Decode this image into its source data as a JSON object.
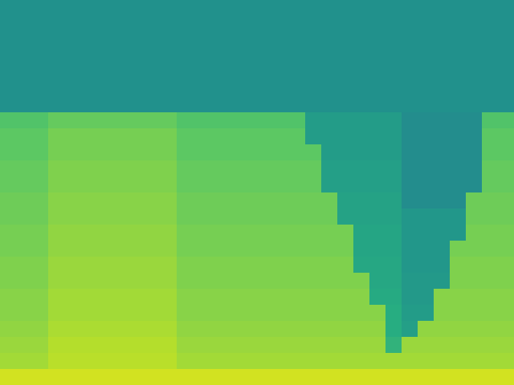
{
  "chart_data": {
    "type": "heatmap",
    "tick_labels": false,
    "value_range": [
      0,
      100
    ],
    "cells": [
      [
        50,
        50,
        50,
        50,
        50,
        50,
        50,
        50,
        50,
        50,
        50,
        50,
        50,
        50,
        50,
        50,
        50,
        50,
        50,
        50,
        50,
        50,
        50,
        50,
        50,
        50,
        50,
        50,
        50,
        50,
        50,
        50
      ],
      [
        50,
        50,
        50,
        50,
        50,
        50,
        50,
        50,
        50,
        50,
        50,
        50,
        50,
        50,
        50,
        50,
        50,
        50,
        50,
        50,
        50,
        50,
        50,
        50,
        50,
        50,
        50,
        50,
        50,
        50,
        50,
        50
      ],
      [
        50,
        50,
        50,
        50,
        50,
        50,
        50,
        50,
        50,
        50,
        50,
        50,
        50,
        50,
        50,
        50,
        50,
        50,
        50,
        50,
        50,
        50,
        50,
        50,
        50,
        50,
        50,
        50,
        50,
        50,
        50,
        50
      ],
      [
        50,
        50,
        50,
        50,
        50,
        50,
        50,
        50,
        50,
        50,
        50,
        50,
        50,
        50,
        50,
        50,
        50,
        50,
        50,
        50,
        50,
        50,
        50,
        50,
        50,
        50,
        50,
        50,
        50,
        50,
        50,
        50
      ],
      [
        50,
        50,
        50,
        50,
        50,
        50,
        50,
        50,
        50,
        50,
        50,
        50,
        50,
        50,
        50,
        50,
        50,
        50,
        50,
        50,
        50,
        50,
        50,
        50,
        50,
        50,
        50,
        50,
        50,
        50,
        50,
        50
      ],
      [
        50,
        50,
        50,
        50,
        50,
        50,
        50,
        50,
        50,
        50,
        50,
        50,
        50,
        50,
        50,
        50,
        50,
        50,
        50,
        50,
        50,
        50,
        50,
        50,
        50,
        50,
        50,
        50,
        50,
        50,
        50,
        50
      ],
      [
        50,
        50,
        50,
        50,
        50,
        50,
        50,
        50,
        50,
        50,
        50,
        50,
        50,
        50,
        50,
        50,
        50,
        50,
        50,
        50,
        50,
        50,
        50,
        50,
        50,
        50,
        50,
        50,
        50,
        50,
        50,
        50
      ],
      [
        68,
        68,
        68,
        71,
        71,
        71,
        71,
        71,
        71,
        71,
        71,
        68,
        68,
        68,
        68,
        68,
        68,
        68,
        68,
        54,
        54,
        54,
        54,
        54,
        54,
        47,
        47,
        47,
        47,
        47,
        68,
        68
      ],
      [
        70,
        70,
        70,
        73,
        73,
        73,
        73,
        73,
        73,
        73,
        73,
        70,
        70,
        70,
        70,
        70,
        70,
        70,
        70,
        54,
        54,
        54,
        54,
        54,
        54,
        47,
        47,
        47,
        47,
        47,
        70,
        70
      ],
      [
        70,
        70,
        70,
        73,
        73,
        73,
        73,
        73,
        73,
        73,
        73,
        70,
        70,
        70,
        70,
        70,
        70,
        70,
        70,
        70,
        54,
        54,
        54,
        54,
        54,
        47,
        47,
        47,
        47,
        47,
        70,
        70
      ],
      [
        71,
        71,
        71,
        74,
        74,
        74,
        74,
        74,
        74,
        74,
        74,
        71,
        71,
        71,
        71,
        71,
        71,
        71,
        71,
        71,
        55,
        55,
        55,
        55,
        55,
        47,
        47,
        47,
        47,
        47,
        71,
        71
      ],
      [
        71,
        71,
        71,
        74,
        74,
        74,
        74,
        74,
        74,
        74,
        74,
        71,
        71,
        71,
        71,
        71,
        71,
        71,
        71,
        71,
        55,
        55,
        55,
        55,
        55,
        47,
        47,
        47,
        47,
        47,
        71,
        71
      ],
      [
        72,
        72,
        72,
        75,
        75,
        75,
        75,
        75,
        75,
        75,
        75,
        72,
        72,
        72,
        72,
        72,
        72,
        72,
        72,
        72,
        72,
        56,
        56,
        56,
        56,
        47,
        47,
        47,
        47,
        72,
        72,
        72
      ],
      [
        72,
        72,
        72,
        75,
        75,
        75,
        75,
        75,
        75,
        75,
        75,
        72,
        72,
        72,
        72,
        72,
        72,
        72,
        72,
        72,
        72,
        56,
        56,
        56,
        56,
        52,
        52,
        52,
        52,
        72,
        72,
        72
      ],
      [
        73,
        73,
        73,
        76,
        76,
        76,
        76,
        76,
        76,
        76,
        76,
        73,
        73,
        73,
        73,
        73,
        73,
        73,
        73,
        73,
        73,
        73,
        57,
        57,
        57,
        52,
        52,
        52,
        52,
        73,
        73,
        73
      ],
      [
        73,
        73,
        73,
        76,
        76,
        76,
        76,
        76,
        76,
        76,
        76,
        73,
        73,
        73,
        73,
        73,
        73,
        73,
        73,
        73,
        73,
        73,
        57,
        57,
        57,
        52,
        52,
        52,
        73,
        73,
        73,
        73
      ],
      [
        74,
        74,
        74,
        77,
        77,
        77,
        77,
        77,
        77,
        77,
        77,
        74,
        74,
        74,
        74,
        74,
        74,
        74,
        74,
        74,
        74,
        74,
        58,
        58,
        58,
        52,
        52,
        52,
        74,
        74,
        74,
        74
      ],
      [
        74,
        74,
        74,
        77,
        77,
        77,
        77,
        77,
        77,
        77,
        77,
        74,
        74,
        74,
        74,
        74,
        74,
        74,
        74,
        74,
        74,
        74,
        74,
        58,
        58,
        53,
        53,
        53,
        74,
        74,
        74,
        74
      ],
      [
        75,
        75,
        75,
        78,
        78,
        78,
        78,
        78,
        78,
        78,
        78,
        75,
        75,
        75,
        75,
        75,
        75,
        75,
        75,
        75,
        75,
        75,
        75,
        59,
        59,
        53,
        53,
        75,
        75,
        75,
        75,
        75
      ],
      [
        75,
        75,
        75,
        78,
        78,
        78,
        78,
        78,
        78,
        78,
        78,
        75,
        75,
        75,
        75,
        75,
        75,
        75,
        75,
        75,
        75,
        75,
        75,
        75,
        60,
        54,
        54,
        75,
        75,
        75,
        75,
        75
      ],
      [
        76,
        76,
        76,
        79,
        79,
        79,
        79,
        79,
        79,
        79,
        79,
        76,
        76,
        76,
        76,
        76,
        76,
        76,
        76,
        76,
        76,
        76,
        76,
        76,
        60,
        55,
        76,
        76,
        76,
        76,
        76,
        76
      ],
      [
        77,
        77,
        77,
        80,
        80,
        80,
        80,
        80,
        80,
        80,
        80,
        77,
        77,
        77,
        77,
        77,
        77,
        77,
        77,
        77,
        77,
        77,
        77,
        77,
        62,
        77,
        77,
        77,
        77,
        77,
        77,
        77
      ],
      [
        78,
        78,
        78,
        81,
        81,
        81,
        81,
        81,
        81,
        81,
        81,
        78,
        78,
        78,
        78,
        78,
        78,
        78,
        78,
        78,
        78,
        78,
        78,
        78,
        78,
        78,
        78,
        78,
        78,
        78,
        78,
        78
      ],
      [
        86,
        86,
        86,
        86,
        86,
        86,
        86,
        86,
        86,
        86,
        86,
        86,
        86,
        86,
        86,
        86,
        86,
        86,
        86,
        86,
        86,
        86,
        86,
        86,
        86,
        86,
        86,
        86,
        86,
        86,
        86,
        86
      ]
    ]
  }
}
